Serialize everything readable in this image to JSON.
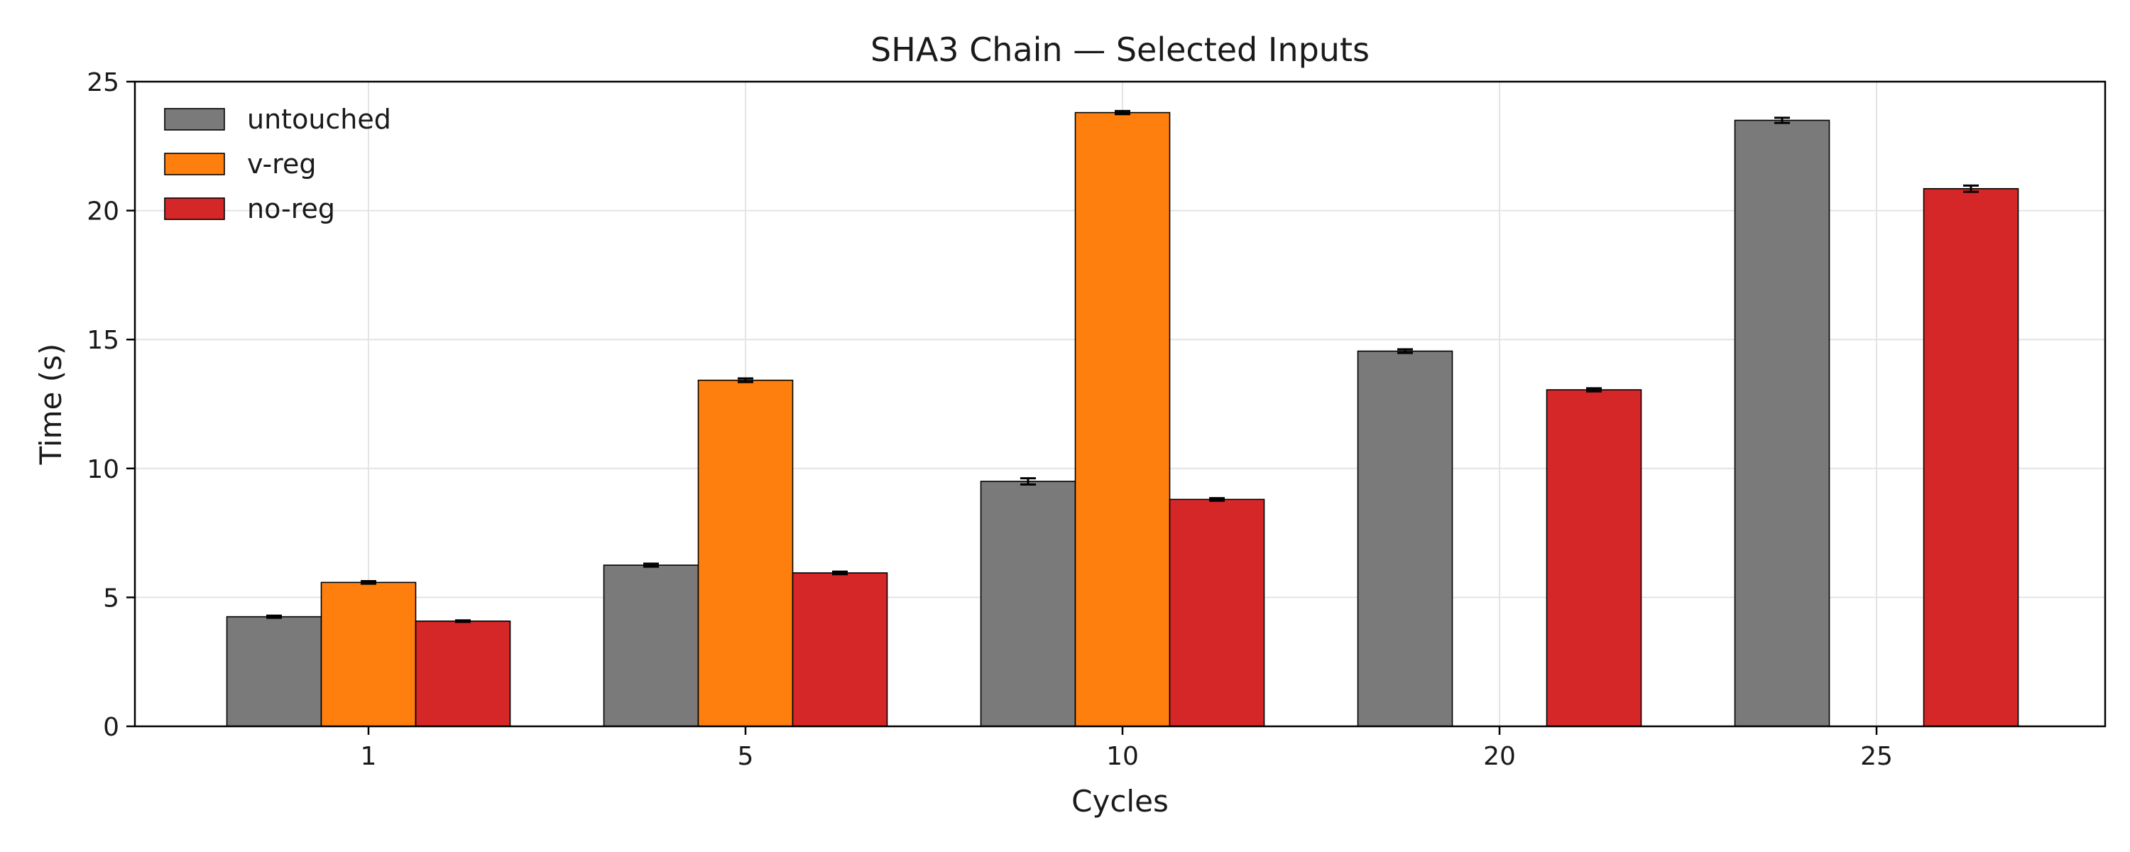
{
  "chart_data": {
    "type": "bar",
    "title": "SHA3 Chain — Selected Inputs",
    "xlabel": "Cycles",
    "ylabel": "Time (s)",
    "categories": [
      "1",
      "5",
      "10",
      "20",
      "25"
    ],
    "ylim": [
      0,
      25
    ],
    "yticks": [
      0,
      5,
      10,
      15,
      20,
      25
    ],
    "grid": true,
    "legend_position": "top-left",
    "series": [
      {
        "name": "untouched",
        "color": "#7a7a7a",
        "values": [
          4.25,
          6.25,
          9.5,
          14.55,
          23.5
        ],
        "errors": [
          0.04,
          0.06,
          0.12,
          0.07,
          0.1
        ]
      },
      {
        "name": "v-reg",
        "color": "#ff7f0e",
        "values": [
          5.58,
          13.42,
          23.8,
          null,
          null
        ],
        "errors": [
          0.05,
          0.07,
          0.06,
          null,
          null
        ]
      },
      {
        "name": "no-reg",
        "color": "#d62728",
        "values": [
          4.08,
          5.95,
          8.8,
          13.05,
          20.85
        ],
        "errors": [
          0.03,
          0.05,
          0.05,
          0.06,
          0.12
        ]
      }
    ]
  }
}
